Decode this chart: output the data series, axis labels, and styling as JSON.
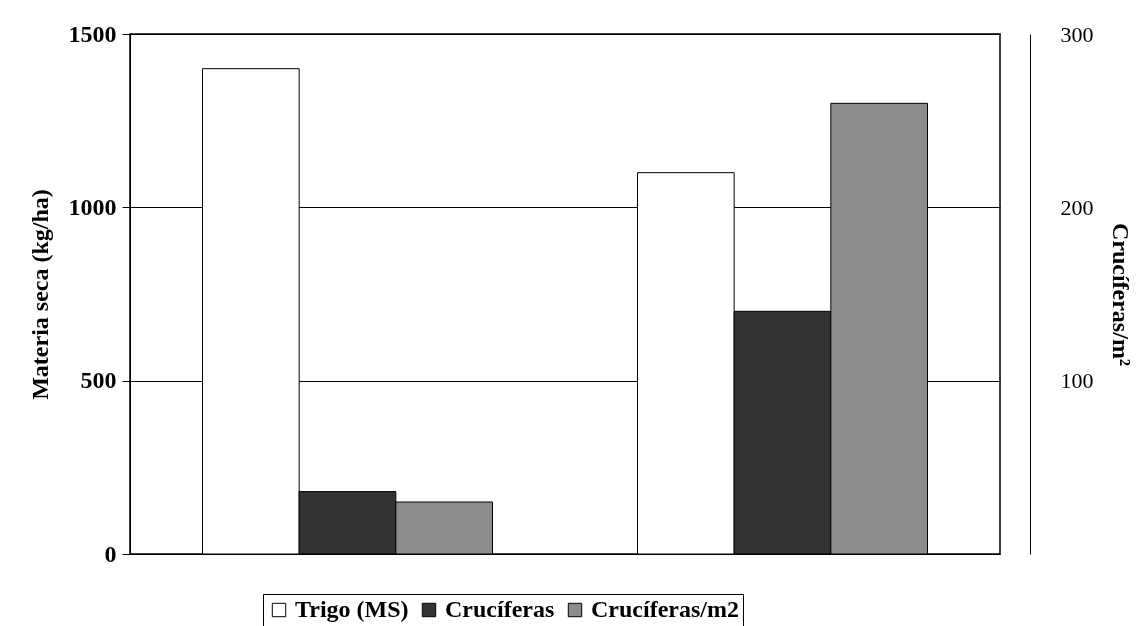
{
  "chart_data": {
    "type": "bar",
    "categories": [
      null,
      null
    ],
    "ylabel": "Materia seca (kg/ha)",
    "y2label": "Crucíferas/m²",
    "series": [
      {
        "name": "Trigo (MS)",
        "color": "#ffffff",
        "values": [
          1400,
          1100
        ]
      },
      {
        "name": "Crucíferas",
        "color": "#333333",
        "values": [
          180,
          700
        ]
      },
      {
        "name": "Crucíferas/m2",
        "color": "#8c8c8c",
        "values": [
          30,
          260
        ],
        "axis": "y2"
      }
    ],
    "ylim": [
      0,
      1500
    ],
    "yticks": [
      0,
      500,
      1000,
      1500
    ],
    "y2lim": [
      0,
      300
    ],
    "y2ticks": [
      100,
      200,
      300
    ],
    "grid": "y",
    "legend": "bottom"
  }
}
